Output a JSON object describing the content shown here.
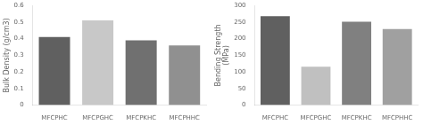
{
  "chart_data": [
    {
      "type": "bar",
      "categories": [
        "MFCPHC",
        "MFCPGHC",
        "MFCPKHC",
        "MFCPHHC"
      ],
      "values": [
        0.41,
        0.51,
        0.39,
        0.36
      ],
      "colors": [
        "#606060",
        "#c8c8c8",
        "#707070",
        "#909090"
      ],
      "ylabel": "Bulk Density (g/cm3)",
      "ylim": [
        0,
        0.6
      ],
      "yticks": [
        0,
        0.1,
        0.2,
        0.3,
        0.4,
        0.5,
        0.6
      ],
      "grid": false
    },
    {
      "type": "bar",
      "categories": [
        "MFCPHC",
        "MFCPGHC",
        "MFCPKHC",
        "MFCPHHC"
      ],
      "values": [
        268,
        116,
        251,
        229
      ],
      "colors": [
        "#606060",
        "#c0c0c0",
        "#808080",
        "#a0a0a0"
      ],
      "ylabel": "Bending Strength\n(MPa)",
      "ylim": [
        0,
        300
      ],
      "yticks": [
        0,
        50,
        100,
        150,
        200,
        250,
        300
      ],
      "grid": false
    }
  ]
}
